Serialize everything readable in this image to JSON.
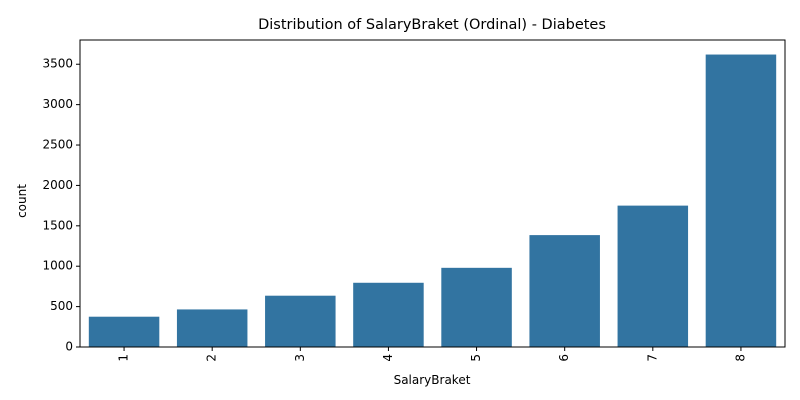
{
  "chart_data": {
    "type": "bar",
    "title": "Distribution of SalaryBraket (Ordinal) - Diabetes",
    "xlabel": "SalaryBraket",
    "ylabel": "count",
    "categories": [
      "1",
      "2",
      "3",
      "4",
      "5",
      "6",
      "7",
      "8"
    ],
    "values": [
      375,
      465,
      635,
      795,
      980,
      1385,
      1750,
      3620
    ],
    "ylim": [
      0,
      3800
    ],
    "yticks": [
      0,
      500,
      1000,
      1500,
      2000,
      2500,
      3000,
      3500
    ],
    "bar_color": "#3274a1",
    "grid": false,
    "legend": "none"
  }
}
